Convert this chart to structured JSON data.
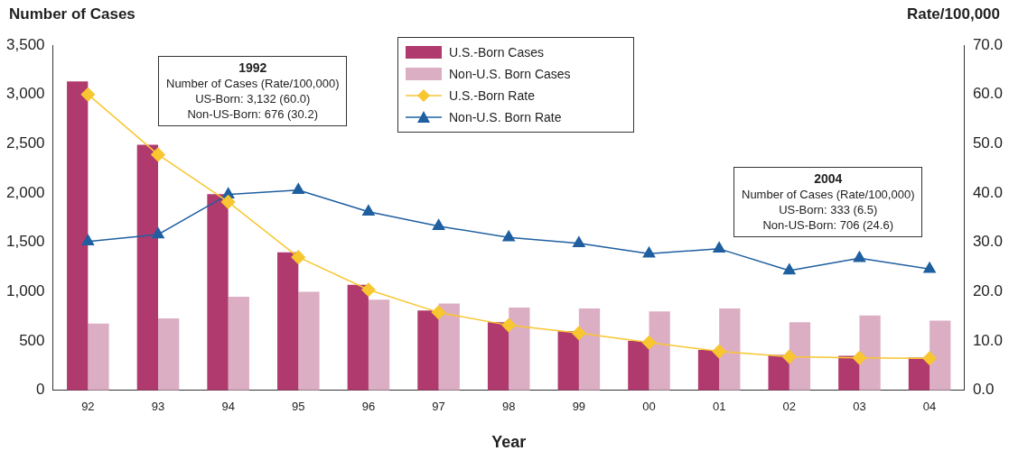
{
  "chart_data": {
    "type": "bar",
    "ylabel": "Number of Cases",
    "y2label": "Rate/100,000",
    "xlabel": "Year",
    "categories": [
      "92",
      "93",
      "94",
      "95",
      "96",
      "97",
      "98",
      "99",
      "00",
      "01",
      "02",
      "03",
      "04"
    ],
    "series": [
      {
        "name": "U.S.-Born Cases",
        "color": "#b03a6e",
        "values": [
          3132,
          2490,
          1990,
          1400,
          1070,
          810,
          690,
          600,
          500,
          410,
          360,
          350,
          333
        ]
      },
      {
        "name": "Non-U.S. Born Cases",
        "color": "#dcaec4",
        "values": [
          676,
          730,
          950,
          1000,
          920,
          880,
          840,
          830,
          800,
          830,
          690,
          760,
          706
        ]
      },
      {
        "name": "U.S.-Born Rate",
        "type": "line",
        "axis": "y2",
        "marker": "diamond",
        "color": "#f8c630",
        "values": [
          60.0,
          47.8,
          38.2,
          27.0,
          20.4,
          15.8,
          13.2,
          11.6,
          9.7,
          7.9,
          6.8,
          6.6,
          6.5
        ]
      },
      {
        "name": "Non-U.S. Born Rate",
        "type": "line",
        "axis": "y2",
        "marker": "triangle",
        "color": "#1f5fa0",
        "values": [
          30.2,
          31.6,
          39.7,
          40.6,
          36.2,
          33.3,
          31.0,
          29.8,
          27.7,
          28.7,
          24.3,
          26.8,
          24.6
        ]
      }
    ],
    "ylim": [
      0,
      3500
    ],
    "yticks": [
      0,
      500,
      {
        "value": 1000,
        "label": "1,000"
      },
      {
        "value": 1500,
        "label": "1,500"
      },
      {
        "value": 2000,
        "label": "2,000"
      },
      {
        "value": 2500,
        "label": "2,500"
      },
      {
        "value": 3000,
        "label": "3,000"
      },
      {
        "value": 3500,
        "label": "3,500"
      }
    ],
    "y2lim": [
      0,
      70
    ],
    "y2ticks": [
      {
        "value": 0,
        "label": "0.0"
      },
      {
        "value": 10,
        "label": "10.0"
      },
      {
        "value": 20,
        "label": "20.0"
      },
      {
        "value": 30,
        "label": "30.0"
      },
      {
        "value": 40,
        "label": "40.0"
      },
      {
        "value": 50,
        "label": "50.0"
      },
      {
        "value": 60,
        "label": "60.0"
      },
      {
        "value": 70,
        "label": "70.0"
      }
    ],
    "annotations": [
      "1992\nNumber of Cases (Rate/100,000)\nUS-Born: 3,132 (60.0)\nNon-US-Born: 676 (30.2)",
      "2004\nNumber of Cases (Rate/100,000)\nUS-Born: 333 (6.5)\nNon-US-Born: 706 (24.6)"
    ],
    "legend": "top",
    "grid": false
  }
}
